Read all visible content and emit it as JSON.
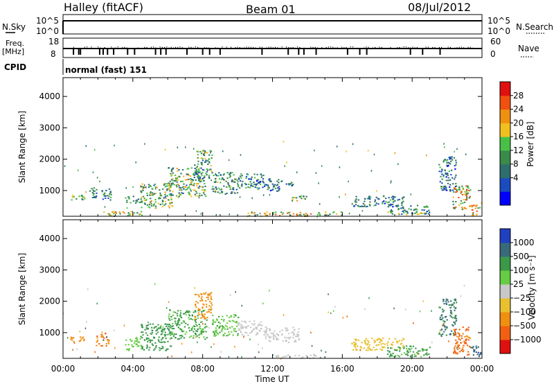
{
  "header": {
    "station": "Halley (fitACF)",
    "beam": "Beam 01",
    "date": "08/Jul/2012"
  },
  "strips": {
    "nsky_label": "N.Sky",
    "nsearch_label": "N.Search",
    "nsky_ticks": [
      "10^5",
      "10^0"
    ],
    "nsearch_ticks": [
      "10^5",
      "10^0"
    ],
    "freq_label_1": "Freq.",
    "freq_label_2": "[MHz]",
    "freq_ticks": [
      "18",
      "8"
    ],
    "nave_label": "Nave",
    "nave_ticks": [
      "60",
      "0"
    ],
    "cpid_label": "CPID",
    "cpid_text": "normal (fast) 151"
  },
  "chart_data": [
    {
      "type": "heatmap",
      "name": "power",
      "ylabel": "Slant Range [km]",
      "xlabel": "",
      "yticks": [
        "4000",
        "3000",
        "2000",
        "1000"
      ],
      "ylim": [
        180,
        4600
      ],
      "xlim": [
        0,
        24
      ],
      "colorbar": {
        "label": "Power [dB]",
        "ticks": [
          "28",
          "24",
          "20",
          "16",
          "12",
          "8",
          "4"
        ],
        "colors": [
          "#0000ff",
          "#1a4cc0",
          "#2e6e6e",
          "#3a8a4a",
          "#48c048",
          "#f0c020",
          "#f09010",
          "#f05010",
          "#e01010"
        ]
      },
      "blobs": [
        {
          "t": [
            0.3,
            1.2
          ],
          "r": [
            700,
            900
          ],
          "v": 16
        },
        {
          "t": [
            1.5,
            1.9
          ],
          "r": [
            650,
            1150
          ],
          "v": 12
        },
        {
          "t": [
            2.2,
            2.8
          ],
          "r": [
            720,
            1120
          ],
          "v": 10
        },
        {
          "t": [
            2.0,
            4.5
          ],
          "r": [
            200,
            350
          ],
          "v": 18
        },
        {
          "t": [
            3.5,
            4.5
          ],
          "r": [
            600,
            850
          ],
          "v": 14
        },
        {
          "t": [
            4.4,
            6.2
          ],
          "r": [
            450,
            1250
          ],
          "v": 16
        },
        {
          "t": [
            6.0,
            8.2
          ],
          "r": [
            800,
            1750
          ],
          "v": 16
        },
        {
          "t": [
            7.5,
            8.5
          ],
          "r": [
            1400,
            2300
          ],
          "v": 14
        },
        {
          "t": [
            8.5,
            10.0
          ],
          "r": [
            900,
            1600
          ],
          "v": 14
        },
        {
          "t": [
            10.0,
            11.5
          ],
          "r": [
            1100,
            1550
          ],
          "v": 12
        },
        {
          "t": [
            11.0,
            12.5
          ],
          "r": [
            1000,
            1400
          ],
          "v": 10
        },
        {
          "t": [
            12.5,
            13.2
          ],
          "r": [
            1150,
            1350
          ],
          "v": 12
        },
        {
          "t": [
            13.0,
            14.0
          ],
          "r": [
            650,
            850
          ],
          "v": 16
        },
        {
          "t": [
            10.5,
            12.0
          ],
          "r": [
            200,
            350
          ],
          "v": 20
        },
        {
          "t": [
            12.0,
            14.5
          ],
          "r": [
            200,
            330
          ],
          "v": 22
        },
        {
          "t": [
            14.5,
            16.0
          ],
          "r": [
            220,
            340
          ],
          "v": 14
        },
        {
          "t": [
            16.5,
            19.5
          ],
          "r": [
            500,
            850
          ],
          "v": 10
        },
        {
          "t": [
            18.5,
            21.0
          ],
          "r": [
            250,
            550
          ],
          "v": 14
        },
        {
          "t": [
            21.5,
            22.5
          ],
          "r": [
            1000,
            2100
          ],
          "v": 10
        },
        {
          "t": [
            22.3,
            23.3
          ],
          "r": [
            400,
            1200
          ],
          "v": 22
        },
        {
          "t": [
            23.3,
            23.9
          ],
          "r": [
            200,
            600
          ],
          "v": 26
        }
      ]
    },
    {
      "type": "heatmap",
      "name": "velocity",
      "ylabel": "Slant Range [km]",
      "xlabel": "Time UT",
      "xticks": [
        "00:00",
        "04:00",
        "08:00",
        "12:00",
        "16:00",
        "20:00",
        "00:00"
      ],
      "yticks": [
        "4000",
        "3000",
        "2000",
        "1000"
      ],
      "ylim": [
        180,
        4600
      ],
      "xlim": [
        0,
        24
      ],
      "colorbar": {
        "label": "Velocity [m s⁻¹]",
        "ticks": [
          "1000",
          "500",
          "100",
          "25",
          "−25",
          "−100",
          "−500",
          "−1000"
        ],
        "colors": [
          "#2040c0",
          "#3a6a7a",
          "#3a9a4a",
          "#66cc44",
          "#c8c8c8",
          "#e8c030",
          "#f09010",
          "#f06010",
          "#e01010"
        ]
      },
      "blobs": [
        {
          "t": [
            0.3,
            1.2
          ],
          "r": [
            700,
            900
          ],
          "v": -300
        },
        {
          "t": [
            1.8,
            2.6
          ],
          "r": [
            600,
            1000
          ],
          "v": -500
        },
        {
          "t": [
            3.5,
            4.5
          ],
          "r": [
            450,
            850
          ],
          "v": 50
        },
        {
          "t": [
            4.4,
            6.2
          ],
          "r": [
            450,
            1300
          ],
          "v": 150
        },
        {
          "t": [
            6.0,
            8.2
          ],
          "r": [
            800,
            1750
          ],
          "v": 120
        },
        {
          "t": [
            7.5,
            8.5
          ],
          "r": [
            1400,
            2300
          ],
          "v": -200
        },
        {
          "t": [
            8.5,
            10.0
          ],
          "r": [
            900,
            1600
          ],
          "v": 80
        },
        {
          "t": [
            10.0,
            11.5
          ],
          "r": [
            900,
            1400
          ],
          "v": 0
        },
        {
          "t": [
            11.5,
            13.5
          ],
          "r": [
            700,
            1200
          ],
          "v": 0
        },
        {
          "t": [
            12.0,
            14.5
          ],
          "r": [
            200,
            330
          ],
          "v": 0
        },
        {
          "t": [
            16.5,
            19.5
          ],
          "r": [
            450,
            850
          ],
          "v": -60
        },
        {
          "t": [
            18.5,
            21.0
          ],
          "r": [
            250,
            600
          ],
          "v": 120
        },
        {
          "t": [
            21.5,
            22.5
          ],
          "r": [
            900,
            2100
          ],
          "v": 600
        },
        {
          "t": [
            22.3,
            23.3
          ],
          "r": [
            300,
            1200
          ],
          "v": -600
        },
        {
          "t": [
            23.3,
            23.9
          ],
          "r": [
            200,
            600
          ],
          "v": 800
        }
      ]
    }
  ]
}
